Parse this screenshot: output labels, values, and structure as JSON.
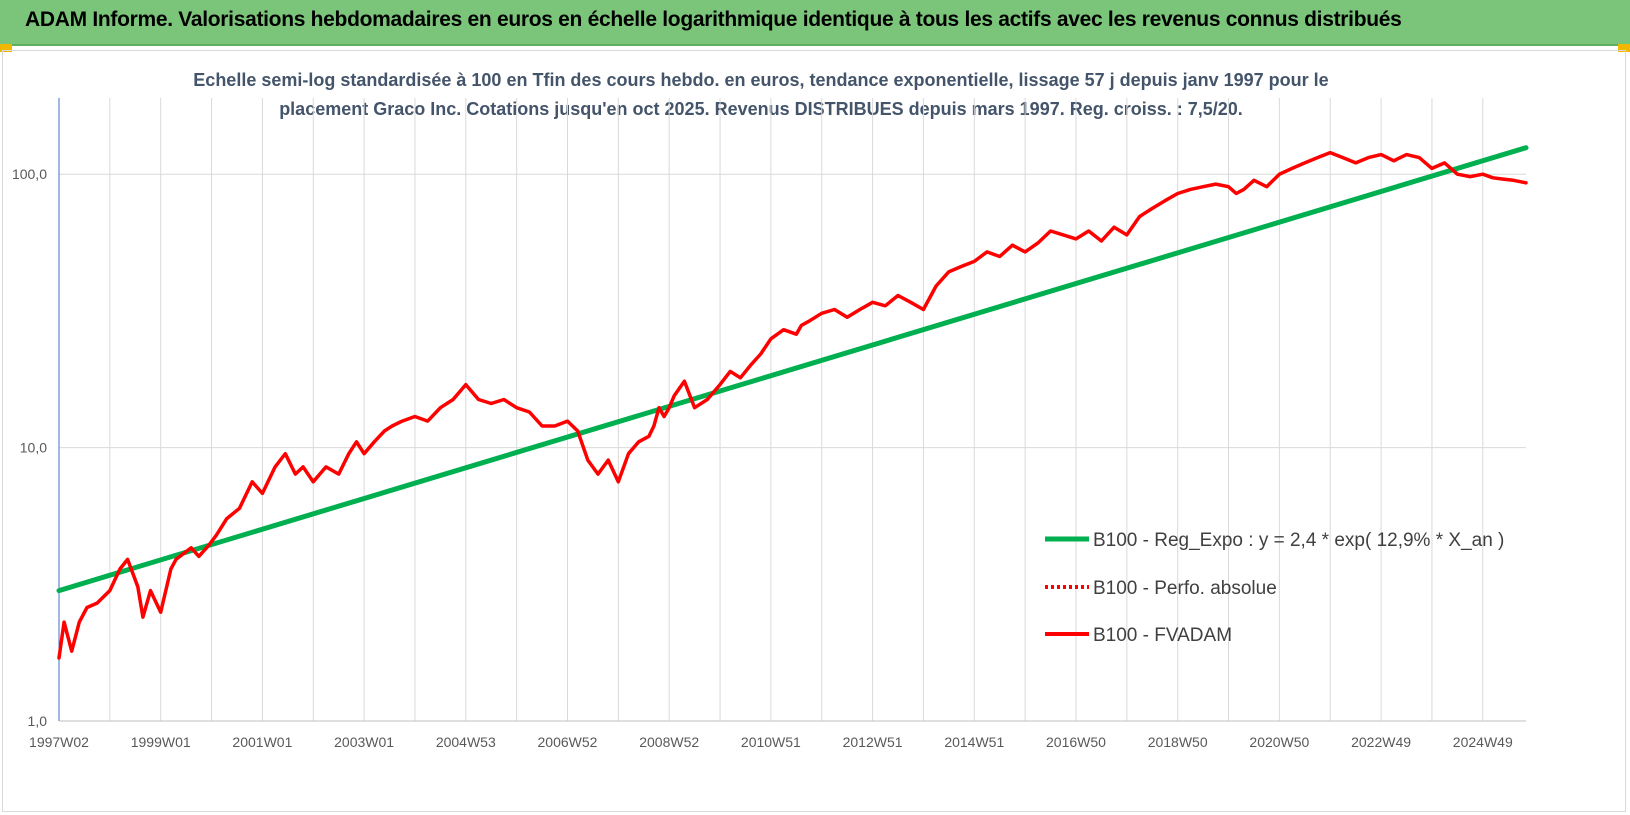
{
  "header": {
    "title": "ADAM Informe. Valorisations hebdomadaires en euros en échelle logarithmique identique à tous les actifs avec les revenus connus distribués",
    "background_color": "#7ac57a"
  },
  "chart_data": {
    "type": "line",
    "title_lines": [
      "Echelle semi-log standardisée à 100 en Tfin des cours hebdo. en euros, tendance exponentielle, lissage 57 j depuis janv 1997 pour le",
      "placement Graco Inc. Cotations jusqu'en oct 2025. Revenus DISTRIBUES depuis mars 1997.  Reg. croiss. : 7,5/20."
    ],
    "y_scale": "log",
    "ylim": [
      1,
      190
    ],
    "y_ticks": [
      {
        "value": 1,
        "label": "1,0"
      },
      {
        "value": 10,
        "label": "10,0"
      },
      {
        "value": 100,
        "label": "100,0"
      }
    ],
    "xlim": [
      1997.0,
      2025.85
    ],
    "x_ticks": [
      {
        "value": 1997.0,
        "label": "1997W02"
      },
      {
        "value": 1999.0,
        "label": "1999W01"
      },
      {
        "value": 2001.0,
        "label": "2001W01"
      },
      {
        "value": 2003.0,
        "label": "2003W01"
      },
      {
        "value": 2005.0,
        "label": "2004W53"
      },
      {
        "value": 2007.0,
        "label": "2006W52"
      },
      {
        "value": 2009.0,
        "label": "2008W52"
      },
      {
        "value": 2011.0,
        "label": "2010W51"
      },
      {
        "value": 2013.0,
        "label": "2012W51"
      },
      {
        "value": 2015.0,
        "label": "2014W51"
      },
      {
        "value": 2017.0,
        "label": "2016W50"
      },
      {
        "value": 2019.0,
        "label": "2018W50"
      },
      {
        "value": 2021.0,
        "label": "2020W50"
      },
      {
        "value": 2023.0,
        "label": "2022W49"
      },
      {
        "value": 2025.0,
        "label": "2024W49"
      }
    ],
    "grid": "vertical-and-horizontal",
    "legend_position": "right-bottom",
    "series": [
      {
        "name": "B100 - Reg_Expo : y = 2,4 * exp( 12,9% *  X_an )",
        "color": "#00b050",
        "style": "solid-thick",
        "x": [
          1997.0,
          2025.85
        ],
        "y": [
          3.0,
          125.0
        ]
      },
      {
        "name": "B100 - Perfo. absolue",
        "color": "#ff0000",
        "style": "dotted",
        "x": [],
        "y": []
      },
      {
        "name": "B100 - FVADAM",
        "color": "#ff0000",
        "style": "solid",
        "x": [
          1997.0,
          1997.1,
          1997.25,
          1997.4,
          1997.55,
          1997.75,
          1998.0,
          1998.2,
          1998.35,
          1998.55,
          1998.65,
          1998.8,
          1999.0,
          1999.2,
          1999.3,
          1999.45,
          1999.6,
          1999.75,
          1999.95,
          2000.1,
          2000.3,
          2000.55,
          2000.8,
          2001.0,
          2001.25,
          2001.45,
          2001.65,
          2001.8,
          2002.0,
          2002.25,
          2002.5,
          2002.7,
          2002.85,
          2003.0,
          2003.2,
          2003.4,
          2003.55,
          2003.75,
          2004.0,
          2004.25,
          2004.5,
          2004.75,
          2005.0,
          2005.25,
          2005.5,
          2005.75,
          2006.0,
          2006.25,
          2006.5,
          2006.75,
          2007.0,
          2007.2,
          2007.4,
          2007.6,
          2007.8,
          2008.0,
          2008.2,
          2008.4,
          2008.6,
          2008.7,
          2008.8,
          2008.9,
          2009.0,
          2009.1,
          2009.3,
          2009.5,
          2009.75,
          2010.0,
          2010.2,
          2010.4,
          2010.6,
          2010.8,
          2011.0,
          2011.25,
          2011.5,
          2011.6,
          2011.75,
          2012.0,
          2012.25,
          2012.5,
          2012.75,
          2013.0,
          2013.25,
          2013.5,
          2013.75,
          2014.0,
          2014.25,
          2014.5,
          2014.75,
          2015.0,
          2015.25,
          2015.5,
          2015.75,
          2016.0,
          2016.25,
          2016.5,
          2016.75,
          2017.0,
          2017.25,
          2017.5,
          2017.75,
          2018.0,
          2018.25,
          2018.5,
          2018.75,
          2019.0,
          2019.25,
          2019.5,
          2019.75,
          2020.0,
          2020.15,
          2020.3,
          2020.5,
          2020.75,
          2021.0,
          2021.25,
          2021.5,
          2021.75,
          2022.0,
          2022.25,
          2022.5,
          2022.75,
          2023.0,
          2023.25,
          2023.5,
          2023.75,
          2024.0,
          2024.25,
          2024.5,
          2024.75,
          2025.0,
          2025.2,
          2025.4,
          2025.6,
          2025.85
        ],
        "y": [
          1.7,
          2.3,
          1.8,
          2.3,
          2.6,
          2.7,
          3.0,
          3.6,
          3.9,
          3.1,
          2.4,
          3.0,
          2.5,
          3.6,
          3.9,
          4.1,
          4.3,
          4.0,
          4.4,
          4.8,
          5.5,
          6.0,
          7.5,
          6.8,
          8.5,
          9.5,
          8.0,
          8.5,
          7.5,
          8.5,
          8.0,
          9.5,
          10.5,
          9.5,
          10.5,
          11.5,
          12.0,
          12.5,
          13.0,
          12.5,
          14.0,
          15.0,
          17.0,
          15.0,
          14.5,
          15.0,
          14.0,
          13.5,
          12.0,
          12.0,
          12.5,
          11.5,
          9.0,
          8.0,
          9.0,
          7.5,
          9.5,
          10.5,
          11.0,
          12.0,
          14.0,
          13.0,
          14.0,
          15.5,
          17.5,
          14.0,
          15.0,
          17.0,
          19.0,
          18.0,
          20.0,
          22.0,
          25.0,
          27.0,
          26.0,
          28.0,
          29.0,
          31.0,
          32.0,
          30.0,
          32.0,
          34.0,
          33.0,
          36.0,
          34.0,
          32.0,
          39.0,
          44.0,
          46.0,
          48.0,
          52.0,
          50.0,
          55.0,
          52.0,
          56.0,
          62.0,
          60.0,
          58.0,
          62.0,
          57.0,
          64.0,
          60.0,
          70.0,
          75.0,
          80.0,
          85.0,
          88.0,
          90.0,
          92.0,
          90.0,
          85.0,
          88.0,
          95.0,
          90.0,
          100.0,
          105.0,
          110.0,
          115.0,
          120.0,
          115.0,
          110.0,
          115.0,
          118.0,
          112.0,
          118.0,
          115.0,
          105.0,
          110.0,
          100.0,
          98.0,
          100.0,
          97.0,
          96.0,
          95.0,
          93.0
        ]
      }
    ]
  }
}
